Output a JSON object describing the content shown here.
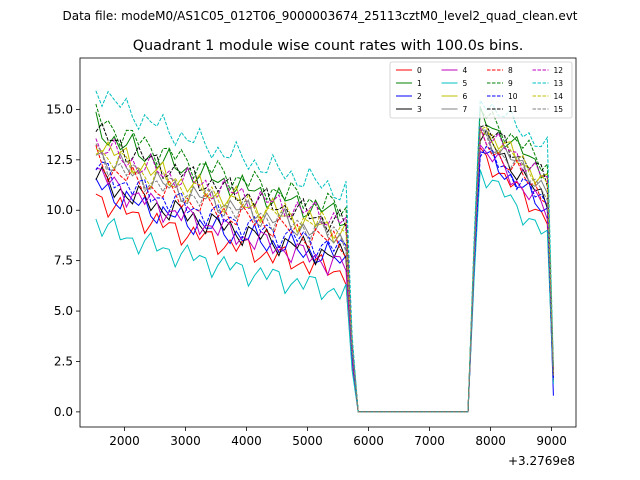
{
  "suptitle": "Data file: modeM0/AS1C05_012T06_9000003674_25113cztM0_level2_quad_clean.evt",
  "chart_data": {
    "type": "line",
    "title": "Quadrant 1 module wise count rates with 100.0s bins.",
    "xlabel": "",
    "ylabel": "",
    "x_offset_label": "+3.2769e8",
    "xlim": [
      1270,
      9400
    ],
    "ylim": [
      -0.75,
      17.55
    ],
    "x_ticks": [
      2000,
      3000,
      4000,
      5000,
      6000,
      7000,
      8000,
      9000
    ],
    "x_tick_labels": [
      "2000",
      "3000",
      "4000",
      "5000",
      "6000",
      "7000",
      "8000",
      "9000"
    ],
    "y_ticks": [
      0,
      2.5,
      5,
      7.5,
      10,
      12.5,
      15
    ],
    "y_tick_labels": [
      "0.0",
      "2.5",
      "5.0",
      "7.5",
      "10.0",
      "12.5",
      "15.0"
    ],
    "x": [
      1530,
      1630,
      1730,
      1830,
      1930,
      2030,
      2130,
      2230,
      2330,
      2430,
      2530,
      2630,
      2730,
      2830,
      2930,
      3030,
      3130,
      3230,
      3330,
      3430,
      3530,
      3630,
      3730,
      3830,
      3930,
      4030,
      4130,
      4230,
      4330,
      4430,
      4530,
      4630,
      4730,
      4830,
      4930,
      5030,
      5130,
      5230,
      5330,
      5430,
      5530,
      5630,
      5730,
      5830,
      5930,
      6030,
      6130,
      6230,
      6330,
      6430,
      6530,
      6630,
      6730,
      6830,
      6930,
      7030,
      7130,
      7230,
      7330,
      7430,
      7530,
      7630,
      7730,
      7830,
      7930,
      8030,
      8130,
      8230,
      8330,
      8430,
      8530,
      8630,
      8730,
      8830,
      8930,
      9030
    ],
    "legend_position": "top-right",
    "series": [
      {
        "name": "0",
        "color": "#ff0000",
        "dash": "solid",
        "start": 10.8,
        "end": 6.9,
        "bump": 12.8,
        "last": 1.5
      },
      {
        "name": "1",
        "color": "#008000",
        "dash": "solid",
        "start": 14.2,
        "end": 9.7,
        "bump": 14.6,
        "last": 1.9
      },
      {
        "name": "2",
        "color": "#0000ff",
        "dash": "solid",
        "start": 11.4,
        "end": 7.5,
        "bump": 13.0,
        "last": 0.8
      },
      {
        "name": "3",
        "color": "#000000",
        "dash": "solid",
        "start": 11.8,
        "end": 7.6,
        "bump": 13.8,
        "last": 1.7
      },
      {
        "name": "4",
        "color": "#bf00bf",
        "dash": "solid",
        "start": 12.0,
        "end": 7.2,
        "bump": 13.2,
        "last": 1.6
      },
      {
        "name": "5",
        "color": "#00bfbf",
        "dash": "solid",
        "start": 9.5,
        "end": 5.9,
        "bump": 12.0,
        "last": 1.4
      },
      {
        "name": "6",
        "color": "#bfbf00",
        "dash": "solid",
        "start": 13.6,
        "end": 8.9,
        "bump": 14.2,
        "last": 2.0
      },
      {
        "name": "7",
        "color": "#808080",
        "dash": "solid",
        "start": 13.0,
        "end": 8.6,
        "bump": 13.9,
        "last": 1.9
      },
      {
        "name": "8",
        "color": "#ff0000",
        "dash": "dashed",
        "start": 12.6,
        "end": 8.3,
        "bump": 13.5,
        "last": 1.8
      },
      {
        "name": "9",
        "color": "#008000",
        "dash": "dashed",
        "start": 14.8,
        "end": 10.0,
        "bump": 14.9,
        "last": 2.1
      },
      {
        "name": "10",
        "color": "#0000ff",
        "dash": "dashed",
        "start": 12.3,
        "end": 8.0,
        "bump": 13.1,
        "last": 1.6
      },
      {
        "name": "11",
        "color": "#000000",
        "dash": "dashed",
        "start": 14.1,
        "end": 9.3,
        "bump": 14.3,
        "last": 1.9
      },
      {
        "name": "12",
        "color": "#bf00bf",
        "dash": "dashed",
        "start": 13.4,
        "end": 9.5,
        "bump": 14.0,
        "last": 2.0
      },
      {
        "name": "13",
        "color": "#00bfbf",
        "dash": "dashed",
        "start": 16.2,
        "end": 10.9,
        "bump": 15.6,
        "last": 2.3
      },
      {
        "name": "14",
        "color": "#bfbf00",
        "dash": "dashed",
        "start": 13.2,
        "end": 9.0,
        "bump": 14.1,
        "last": 1.9
      },
      {
        "name": "15",
        "color": "#808080",
        "dash": "dashed",
        "start": 12.9,
        "end": 8.7,
        "bump": 13.7,
        "last": 1.8
      }
    ]
  }
}
